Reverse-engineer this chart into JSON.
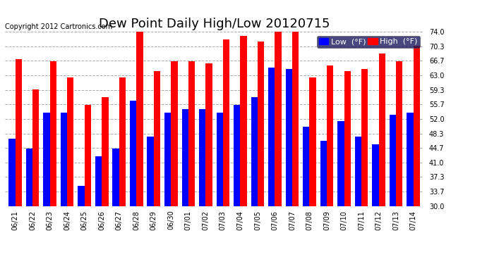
{
  "title": "Dew Point Daily High/Low 20120715",
  "copyright": "Copyright 2012 Cartronics.com",
  "dates": [
    "06/21",
    "06/22",
    "06/23",
    "06/24",
    "06/25",
    "06/26",
    "06/27",
    "06/28",
    "06/29",
    "06/30",
    "07/01",
    "07/02",
    "07/03",
    "07/04",
    "07/05",
    "07/06",
    "07/07",
    "07/08",
    "07/09",
    "07/10",
    "07/11",
    "07/12",
    "07/13",
    "07/14"
  ],
  "high": [
    67.0,
    59.5,
    66.5,
    62.5,
    55.5,
    57.5,
    62.5,
    75.0,
    64.0,
    66.5,
    66.5,
    66.0,
    72.0,
    73.0,
    71.5,
    75.0,
    75.0,
    62.5,
    65.5,
    64.0,
    64.5,
    68.5,
    66.5,
    70.5
  ],
  "low": [
    47.0,
    44.5,
    53.5,
    53.5,
    35.0,
    42.5,
    44.5,
    56.5,
    47.5,
    53.5,
    54.5,
    54.5,
    53.5,
    55.5,
    57.5,
    65.0,
    64.5,
    50.0,
    46.5,
    51.5,
    47.5,
    45.5,
    53.0,
    53.5
  ],
  "high_color": "#FF0000",
  "low_color": "#0000FF",
  "bg_color": "#FFFFFF",
  "plot_bg_color": "#FFFFFF",
  "grid_color": "#AAAAAA",
  "ylim": [
    30.0,
    74.0
  ],
  "yticks": [
    30.0,
    33.7,
    37.3,
    41.0,
    44.7,
    48.3,
    52.0,
    55.7,
    59.3,
    63.0,
    66.7,
    70.3,
    74.0
  ],
  "bar_width": 0.38,
  "title_fontsize": 13,
  "tick_fontsize": 7,
  "copyright_fontsize": 7,
  "legend_fontsize": 8
}
